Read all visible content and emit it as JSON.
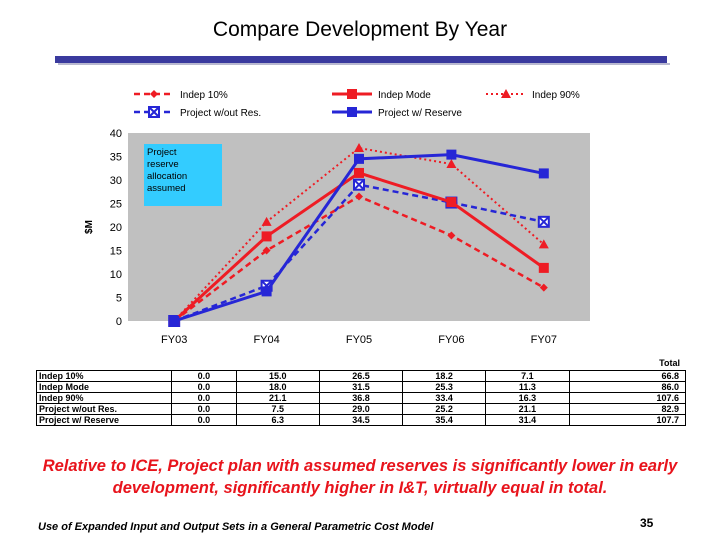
{
  "slide": {
    "title": "Compare Development By Year",
    "subtitle": "Relative to ICE, Project plan with assumed reserves is significantly lower in early development, significantly higher in I&T, virtually equal in total.",
    "footer": "Use of Expanded Input and Output Sets in a General Parametric Cost Model",
    "page_number": "35"
  },
  "colors": {
    "red": "#ee1c24",
    "blue": "#2626d6",
    "title_bar": "#3a3a9e",
    "plot_bg": "#c0c0c0"
  },
  "chart_data": {
    "type": "line",
    "title": "",
    "xlabel": "",
    "ylabel": "$M",
    "ylim": [
      0,
      40
    ],
    "yticks": [
      0,
      5,
      10,
      15,
      20,
      25,
      30,
      35,
      40
    ],
    "grid": false,
    "categories": [
      "FY03",
      "FY04",
      "FY05",
      "FY06",
      "FY07"
    ],
    "annotation": "Project reserve allocation assumed",
    "legend_position": "top",
    "series": [
      {
        "name": "Indep 10%",
        "values": [
          0.0,
          15.0,
          26.5,
          18.2,
          7.1
        ],
        "color": "red",
        "dash": "dashed",
        "marker": "diamond",
        "total": "66.8"
      },
      {
        "name": "Indep Mode",
        "values": [
          0.0,
          18.0,
          31.5,
          25.3,
          11.3
        ],
        "color": "red",
        "dash": "solid",
        "marker": "square",
        "total": "86.0"
      },
      {
        "name": "Indep 90%",
        "values": [
          0.0,
          21.1,
          36.8,
          33.4,
          16.3
        ],
        "color": "red",
        "dash": "dotted",
        "marker": "triangle",
        "total": "107.6"
      },
      {
        "name": "Project w/out Res.",
        "values": [
          0.0,
          7.5,
          29.0,
          25.2,
          21.1
        ],
        "color": "blue",
        "dash": "dashed",
        "marker": "x-square",
        "total": "82.9"
      },
      {
        "name": "Project w/ Reserve",
        "values": [
          0.0,
          6.3,
          34.5,
          35.4,
          31.4
        ],
        "color": "blue",
        "dash": "solid",
        "marker": "square",
        "total": "107.7"
      }
    ],
    "table": {
      "total_header": "Total",
      "rows": [
        {
          "name": "Indep 10%",
          "cells": [
            "0.0",
            "15.0",
            "26.5",
            "18.2",
            "7.1"
          ],
          "total": "66.8"
        },
        {
          "name": "Indep Mode",
          "cells": [
            "0.0",
            "18.0",
            "31.5",
            "25.3",
            "11.3"
          ],
          "total": "86.0"
        },
        {
          "name": "Indep 90%",
          "cells": [
            "0.0",
            "21.1",
            "36.8",
            "33.4",
            "16.3"
          ],
          "total": "107.6"
        },
        {
          "name": "Project w/out Res.",
          "cells": [
            "0.0",
            "7.5",
            "29.0",
            "25.2",
            "21.1"
          ],
          "total": "82.9"
        },
        {
          "name": "Project w/ Reserve",
          "cells": [
            "0.0",
            "6.3",
            "34.5",
            "35.4",
            "31.4"
          ],
          "total": "107.7"
        }
      ]
    }
  }
}
